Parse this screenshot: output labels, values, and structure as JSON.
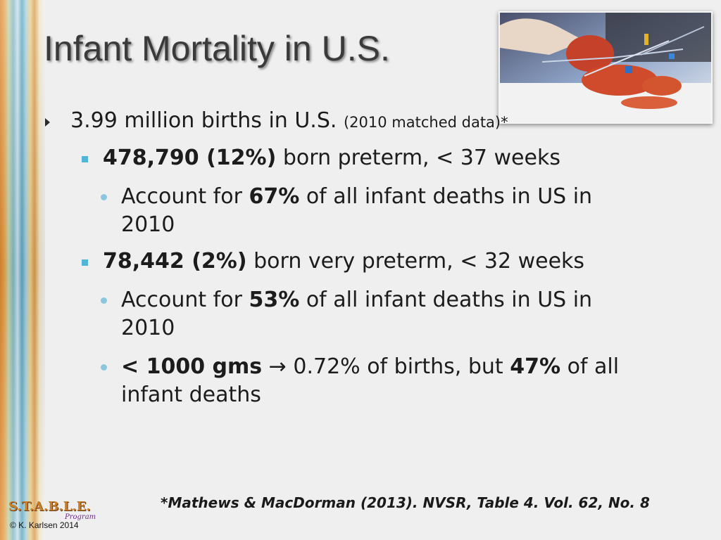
{
  "title": "Infant Mortality in U.S.",
  "bullets": {
    "b1": {
      "main": "3.99 million births in U.S.",
      "note": "(2010 matched data)*"
    },
    "b2": {
      "bold": "478,790 (12%)",
      "rest": "born preterm, < 37 weeks"
    },
    "b3": {
      "pre": "Account for",
      "bold": "67%",
      "post": "of all infant deaths in US in",
      "line2": "2010"
    },
    "b4": {
      "bold": "78,442 (2%)",
      "rest": "born very preterm, < 32 weeks"
    },
    "b5": {
      "pre": "Account for",
      "bold": "53%",
      "post": "of all infant deaths in US in",
      "line2": "2010"
    },
    "b6": {
      "bold1": "< 1000 gms",
      "arrow": "→",
      "mid": "0.72% of births, but",
      "bold2": "47%",
      "post": "of all",
      "line2": "infant deaths"
    }
  },
  "citation": "*Mathews & MacDorman (2013). NVSR, Table 4. Vol. 62, No. 8",
  "logo": {
    "text": "S.T.A.B.L.E.",
    "script": "Program",
    "copyright": "© K. Karlsen 2014"
  }
}
